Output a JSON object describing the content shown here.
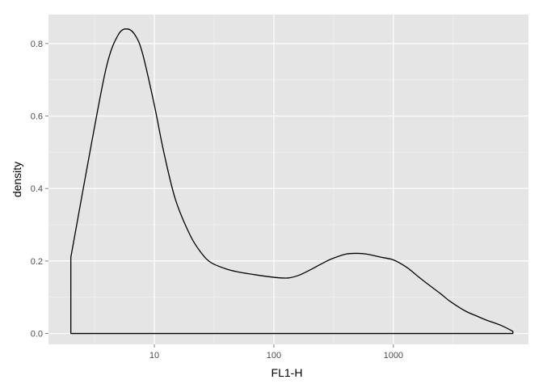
{
  "chart_data": {
    "type": "area",
    "title": "",
    "xlabel": "FL1-H",
    "ylabel": "density",
    "x_scale": "log10",
    "xlim": [
      1.3,
      13500
    ],
    "ylim": [
      -0.03,
      0.88
    ],
    "grid": true,
    "x_ticks": [
      {
        "value": 10,
        "label": "10"
      },
      {
        "value": 100,
        "label": "100"
      },
      {
        "value": 1000,
        "label": "1000"
      }
    ],
    "y_ticks": [
      {
        "value": 0.0,
        "label": "0.0"
      },
      {
        "value": 0.2,
        "label": "0.2"
      },
      {
        "value": 0.4,
        "label": "0.4"
      },
      {
        "value": 0.6,
        "label": "0.6"
      },
      {
        "value": 0.8,
        "label": "0.8"
      }
    ],
    "series": [
      {
        "fill": "none",
        "stroke": "#000000",
        "points": [
          [
            2,
            0.0
          ],
          [
            2,
            0.21
          ],
          [
            3,
            0.53
          ],
          [
            4,
            0.74
          ],
          [
            5,
            0.825
          ],
          [
            6,
            0.84
          ],
          [
            7,
            0.82
          ],
          [
            8,
            0.77
          ],
          [
            10,
            0.63
          ],
          [
            12,
            0.5
          ],
          [
            15,
            0.37
          ],
          [
            20,
            0.27
          ],
          [
            25,
            0.22
          ],
          [
            30,
            0.195
          ],
          [
            40,
            0.178
          ],
          [
            50,
            0.17
          ],
          [
            70,
            0.162
          ],
          [
            100,
            0.155
          ],
          [
            130,
            0.153
          ],
          [
            160,
            0.16
          ],
          [
            200,
            0.175
          ],
          [
            250,
            0.192
          ],
          [
            300,
            0.205
          ],
          [
            400,
            0.219
          ],
          [
            500,
            0.221
          ],
          [
            600,
            0.219
          ],
          [
            800,
            0.21
          ],
          [
            1000,
            0.203
          ],
          [
            1300,
            0.182
          ],
          [
            1600,
            0.158
          ],
          [
            2000,
            0.133
          ],
          [
            2500,
            0.109
          ],
          [
            3000,
            0.088
          ],
          [
            4000,
            0.062
          ],
          [
            5000,
            0.048
          ],
          [
            6000,
            0.037
          ],
          [
            8000,
            0.022
          ],
          [
            10000,
            0.006
          ],
          [
            10000,
            0.0
          ],
          [
            2,
            0.0
          ]
        ]
      }
    ]
  },
  "colors": {
    "panel": "#e5e5e5",
    "grid_major": "#ffffff",
    "grid_minor": "#f2f2f2",
    "line": "#000000",
    "tick_text": "#4d4d4d"
  }
}
